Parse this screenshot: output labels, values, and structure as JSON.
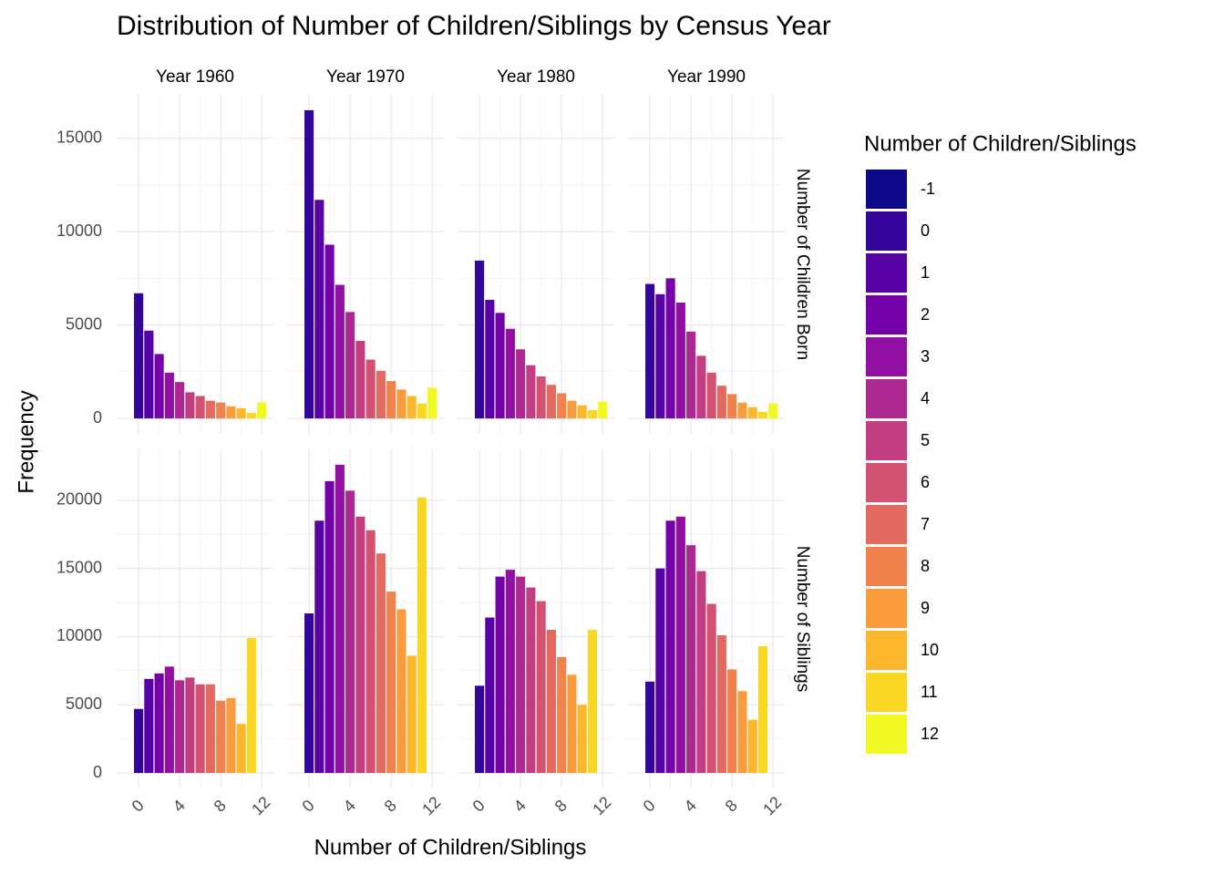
{
  "chart_data": {
    "type": "bar",
    "title": "Distribution of Number of Children/Siblings by Census Year",
    "x_label": "Number of Children/Siblings",
    "y_label": "Frequency",
    "legend_title": "Number of Children/Siblings",
    "categories": [
      "-1",
      "0",
      "1",
      "2",
      "3",
      "4",
      "5",
      "6",
      "7",
      "8",
      "9",
      "10",
      "11",
      "12"
    ],
    "colors": [
      "#0d0887",
      "#33059a",
      "#5702a5",
      "#7501a8",
      "#910fa3",
      "#ae2891",
      "#c23d81",
      "#d35171",
      "#e4695e",
      "#f1824c",
      "#fa9c3c",
      "#fdb72d",
      "#f9d723",
      "#f0f921"
    ],
    "xlim": [
      -2.14,
      13.14
    ],
    "xticks": [
      0,
      4,
      8,
      12
    ],
    "grid": true,
    "facet_columns": [
      "Year 1960",
      "Year 1970",
      "Year 1980",
      "Year 1990"
    ],
    "facet_rows": [
      {
        "label": "Number of Children Born",
        "ylim": [
          -825,
          17325
        ],
        "yticks": [
          0,
          5000,
          10000,
          15000
        ],
        "panels": [
          {
            "x": [
              0,
              1,
              2,
              3,
              4,
              5,
              6,
              7,
              8,
              9,
              10,
              11,
              12
            ],
            "values": [
              6700,
              4700,
              3450,
              2450,
              1950,
              1400,
              1200,
              950,
              850,
              650,
              550,
              300,
              850
            ]
          },
          {
            "x": [
              0,
              1,
              2,
              3,
              4,
              5,
              6,
              7,
              8,
              9,
              10,
              11,
              12
            ],
            "values": [
              16500,
              11700,
              9300,
              7150,
              5700,
              4150,
              3150,
              2550,
              2000,
              1550,
              1200,
              800,
              1650
            ]
          },
          {
            "x": [
              0,
              1,
              2,
              3,
              4,
              5,
              6,
              7,
              8,
              9,
              10,
              11,
              12
            ],
            "values": [
              8450,
              6350,
              5650,
              4800,
              3700,
              2850,
              2250,
              1800,
              1350,
              950,
              700,
              450,
              900
            ]
          },
          {
            "x": [
              0,
              1,
              2,
              3,
              4,
              5,
              6,
              7,
              8,
              9,
              10,
              11,
              12
            ],
            "values": [
              7200,
              6650,
              7500,
              6200,
              4650,
              3350,
              2450,
              1750,
              1300,
              850,
              600,
              350,
              800
            ]
          }
        ]
      },
      {
        "label": "Number of Siblings",
        "ylim": [
          -1130,
          23730
        ],
        "yticks": [
          0,
          5000,
          10000,
          15000,
          20000
        ],
        "panels": [
          {
            "x": [
              0,
              1,
              2,
              3,
              4,
              5,
              6,
              7,
              8,
              9,
              10,
              11
            ],
            "values": [
              4700,
              6900,
              7300,
              7800,
              6800,
              7000,
              6500,
              6500,
              5300,
              5500,
              3600,
              9900
            ]
          },
          {
            "x": [
              0,
              1,
              2,
              3,
              4,
              5,
              6,
              7,
              8,
              9,
              10,
              11
            ],
            "values": [
              11700,
              18500,
              21400,
              22600,
              20700,
              18800,
              17800,
              16100,
              13300,
              12000,
              8600,
              20200
            ]
          },
          {
            "x": [
              0,
              1,
              2,
              3,
              4,
              5,
              6,
              7,
              8,
              9,
              10,
              11
            ],
            "values": [
              6400,
              11400,
              14400,
              14900,
              14400,
              13600,
              12600,
              10500,
              8500,
              7200,
              5000,
              10500
            ]
          },
          {
            "x": [
              0,
              1,
              2,
              3,
              4,
              5,
              6,
              7,
              8,
              9,
              10,
              11
            ],
            "values": [
              6700,
              15000,
              18500,
              18800,
              16700,
              14800,
              12400,
              10100,
              7600,
              6000,
              3900,
              9300
            ]
          }
        ]
      }
    ]
  }
}
